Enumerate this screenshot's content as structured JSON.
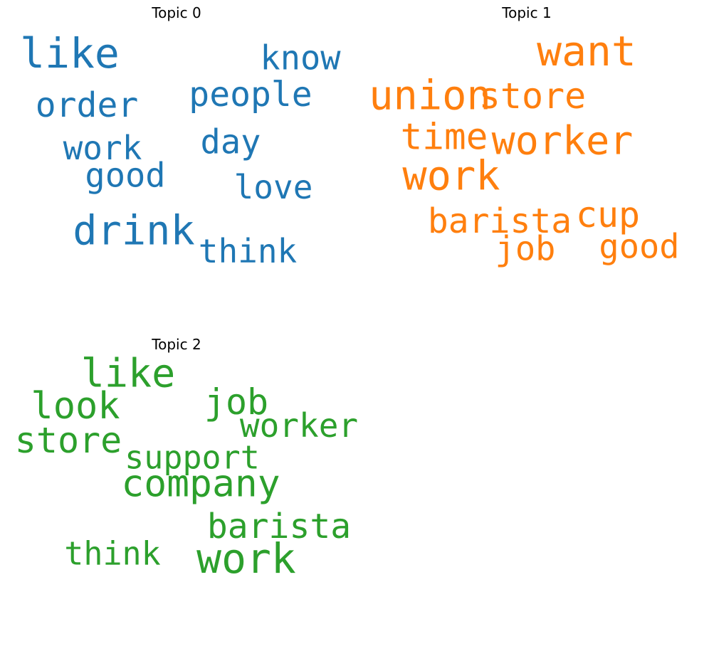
{
  "chart_data": [
    {
      "type": "wordcloud",
      "title": "Topic 0",
      "color": "#1f77b4",
      "words": [
        {
          "text": "like",
          "weight": 1.0
        },
        {
          "text": "drink",
          "weight": 0.95
        },
        {
          "text": "people",
          "weight": 0.62
        },
        {
          "text": "order",
          "weight": 0.6
        },
        {
          "text": "know",
          "weight": 0.58
        },
        {
          "text": "good",
          "weight": 0.58
        },
        {
          "text": "day",
          "weight": 0.58
        },
        {
          "text": "work",
          "weight": 0.55
        },
        {
          "text": "love",
          "weight": 0.55
        },
        {
          "text": "think",
          "weight": 0.55
        }
      ]
    },
    {
      "type": "wordcloud",
      "title": "Topic 1",
      "color": "#ff7f0e",
      "words": [
        {
          "text": "want",
          "weight": 1.0
        },
        {
          "text": "union",
          "weight": 0.98
        },
        {
          "text": "work",
          "weight": 0.98
        },
        {
          "text": "worker",
          "weight": 0.9
        },
        {
          "text": "time",
          "weight": 0.72
        },
        {
          "text": "store",
          "weight": 0.68
        },
        {
          "text": "cup",
          "weight": 0.7
        },
        {
          "text": "barista",
          "weight": 0.62
        },
        {
          "text": "job",
          "weight": 0.58
        },
        {
          "text": "good",
          "weight": 0.58
        }
      ]
    },
    {
      "type": "wordcloud",
      "title": "Topic 2",
      "color": "#2ca02c",
      "words": [
        {
          "text": "work",
          "weight": 1.0
        },
        {
          "text": "like",
          "weight": 0.9
        },
        {
          "text": "company",
          "weight": 0.82
        },
        {
          "text": "look",
          "weight": 0.75
        },
        {
          "text": "job",
          "weight": 0.7
        },
        {
          "text": "store",
          "weight": 0.68
        },
        {
          "text": "barista",
          "weight": 0.62
        },
        {
          "text": "worker",
          "weight": 0.52
        },
        {
          "text": "support",
          "weight": 0.5
        },
        {
          "text": "think",
          "weight": 0.5
        }
      ]
    }
  ]
}
